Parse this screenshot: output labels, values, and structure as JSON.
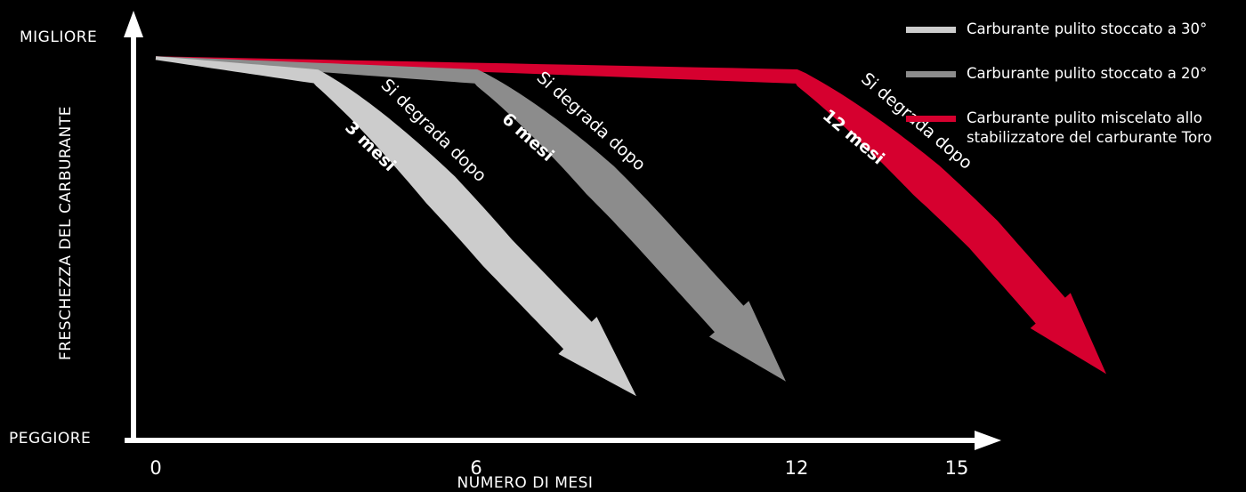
{
  "chart_data": {
    "type": "line",
    "xlabel": "NUMERO DI MESI",
    "ylabel": "FRESCHEZZA DEL CARBURANTE",
    "y_top_label": "MIGLIORE",
    "y_bottom_label": "PEGGIORE",
    "xticks": [
      {
        "value": 0,
        "label": "0"
      },
      {
        "value": 6,
        "label": "6"
      },
      {
        "value": 12,
        "label": "12"
      },
      {
        "value": 15,
        "label": "15"
      }
    ],
    "xlim": [
      0,
      15.5
    ],
    "ylim": [
      0,
      1
    ],
    "legend_position": "top-right",
    "series": [
      {
        "name": "Carburante pulito stoccato a 30°",
        "color": "#cccccc",
        "note": "Si degrada dopo",
        "note_bold": "3 mesi",
        "plateau": [
          [
            0,
            0.98
          ],
          [
            3,
            0.93
          ]
        ],
        "decline": [
          [
            3,
            0.93
          ],
          [
            4.3,
            0.8
          ],
          [
            6.4,
            0.45
          ],
          [
            9.0,
            0.06
          ]
        ]
      },
      {
        "name": "Carburante pulito stoccato a 20°",
        "color": "#8c8c8c",
        "note": "Si degrada dopo",
        "note_bold": "6 mesi",
        "plateau": [
          [
            0,
            0.98
          ],
          [
            6,
            0.93
          ]
        ],
        "decline": [
          [
            6,
            0.93
          ],
          [
            7.4,
            0.8
          ],
          [
            9.3,
            0.5
          ],
          [
            11.8,
            0.1
          ]
        ]
      },
      {
        "name": "Carburante pulito miscelato allo stabilizzatore del carburante Toro",
        "color": "#d6002f",
        "note": "Si degrada dopo",
        "note_bold": "12 mesi",
        "plateau": [
          [
            0,
            0.98
          ],
          [
            12,
            0.93
          ]
        ],
        "decline": [
          [
            12,
            0.93
          ],
          [
            13.4,
            0.8
          ],
          [
            15.5,
            0.5
          ],
          [
            17.8,
            0.12
          ]
        ]
      }
    ]
  }
}
